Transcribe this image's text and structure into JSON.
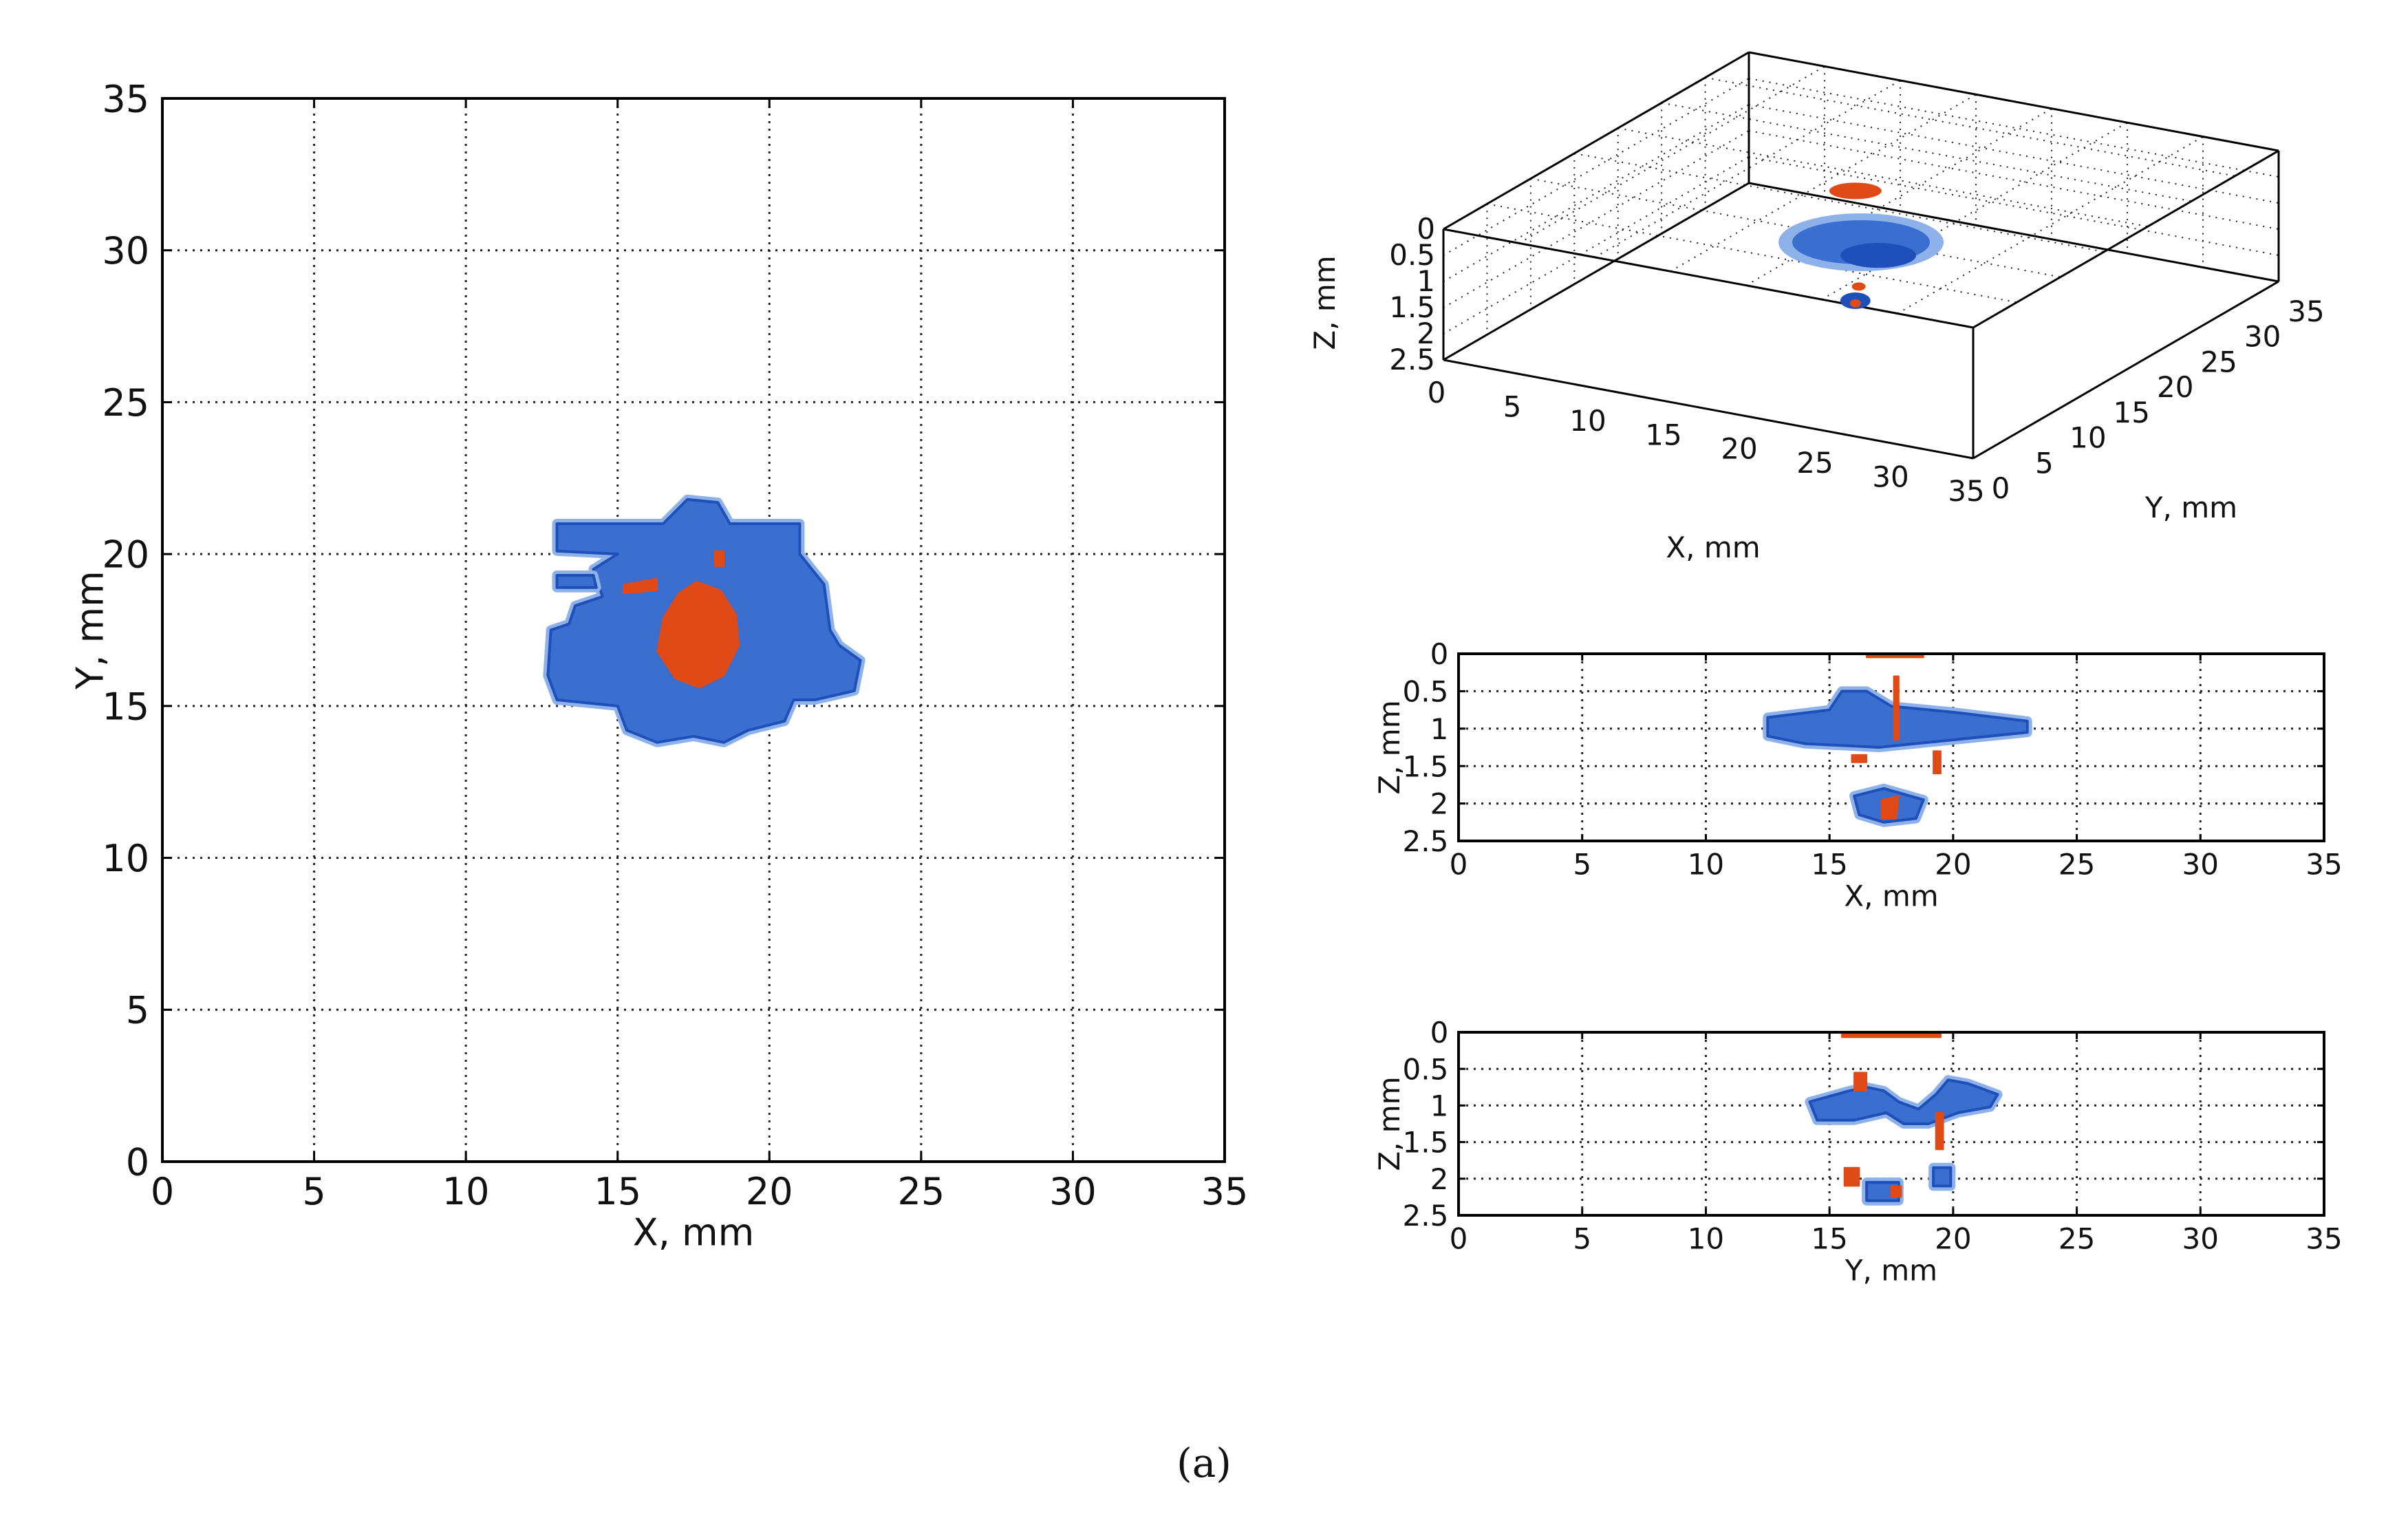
{
  "caption": "(a)",
  "colors": {
    "blue_dark": "#1f4fb8",
    "blue_mid": "#3a6fd0",
    "blue_light": "#8db2ea",
    "red": "#e04a16",
    "grid": "#222222",
    "axis": "#000000"
  },
  "chart_data": [
    {
      "id": "xy-view",
      "type": "heatmap",
      "title": "",
      "xlabel": "X, mm",
      "ylabel": "Y, mm",
      "xlim": [
        0,
        35
      ],
      "ylim": [
        0,
        35
      ],
      "xticks": [
        0,
        5,
        10,
        15,
        20,
        25,
        30,
        35
      ],
      "yticks": [
        0,
        5,
        10,
        15,
        20,
        25,
        30,
        35
      ],
      "grid": true,
      "regions": [
        {
          "name": "blue",
          "polygon": [
            [
              13,
              21
            ],
            [
              16.5,
              21
            ],
            [
              17.3,
              21.8
            ],
            [
              18.3,
              21.7
            ],
            [
              18.7,
              21
            ],
            [
              21,
              21
            ],
            [
              21,
              20
            ],
            [
              21.8,
              19
            ],
            [
              22,
              17.5
            ],
            [
              22.3,
              17
            ],
            [
              23,
              16.5
            ],
            [
              22.8,
              15.5
            ],
            [
              21.5,
              15.2
            ],
            [
              20.8,
              15.2
            ],
            [
              20.5,
              14.5
            ],
            [
              19.3,
              14.2
            ],
            [
              18.5,
              13.8
            ],
            [
              17.5,
              14
            ],
            [
              16.3,
              13.8
            ],
            [
              15.3,
              14.2
            ],
            [
              15,
              15
            ],
            [
              13,
              15.2
            ],
            [
              12.7,
              16
            ],
            [
              12.8,
              17.5
            ],
            [
              13.4,
              17.7
            ],
            [
              13.6,
              18.3
            ],
            [
              14.5,
              18.6
            ],
            [
              14.2,
              19.5
            ],
            [
              15,
              20
            ],
            [
              13,
              20.1
            ]
          ]
        },
        {
          "name": "blue",
          "polygon": [
            [
              13,
              19.3
            ],
            [
              14.2,
              19.3
            ],
            [
              14.3,
              18.9
            ],
            [
              13,
              18.9
            ]
          ]
        },
        {
          "name": "red",
          "polygon": [
            [
              17.6,
              19.1
            ],
            [
              18.4,
              18.8
            ],
            [
              18.9,
              18
            ],
            [
              19,
              17
            ],
            [
              18.5,
              16
            ],
            [
              17.7,
              15.6
            ],
            [
              16.9,
              15.9
            ],
            [
              16.3,
              16.8
            ],
            [
              16.5,
              17.9
            ],
            [
              17,
              18.7
            ]
          ]
        },
        {
          "name": "red",
          "polygon": [
            [
              18.2,
              20.1
            ],
            [
              18.5,
              20.1
            ],
            [
              18.5,
              19.6
            ],
            [
              18.2,
              19.6
            ]
          ]
        },
        {
          "name": "red",
          "polygon": [
            [
              15.2,
              19
            ],
            [
              16.3,
              19.2
            ],
            [
              16.3,
              18.8
            ],
            [
              15.2,
              18.7
            ]
          ]
        }
      ]
    },
    {
      "id": "xz-view",
      "type": "heatmap",
      "title": "",
      "xlabel": "X, mm",
      "ylabel": "Z, mm",
      "xlim": [
        0,
        35
      ],
      "ylim": [
        0,
        2.5
      ],
      "xticks": [
        0,
        5,
        10,
        15,
        20,
        25,
        30,
        35
      ],
      "yticks": [
        0,
        0.5,
        1,
        1.5,
        2,
        2.5
      ],
      "y_inverted": true,
      "grid": true,
      "regions": [
        {
          "name": "blue",
          "polygon": [
            [
              12.5,
              0.85
            ],
            [
              15,
              0.75
            ],
            [
              15.5,
              0.5
            ],
            [
              16.5,
              0.5
            ],
            [
              17.5,
              0.7
            ],
            [
              20,
              0.78
            ],
            [
              23,
              0.9
            ],
            [
              23,
              1.05
            ],
            [
              20,
              1.15
            ],
            [
              17,
              1.25
            ],
            [
              14,
              1.2
            ],
            [
              12.5,
              1.1
            ]
          ]
        },
        {
          "name": "blue",
          "polygon": [
            [
              16,
              1.9
            ],
            [
              17.2,
              1.8
            ],
            [
              18.8,
              1.95
            ],
            [
              18.5,
              2.2
            ],
            [
              17.2,
              2.25
            ],
            [
              16.2,
              2.15
            ]
          ]
        },
        {
          "name": "red",
          "polygon": [
            [
              16.5,
              0
            ],
            [
              18.8,
              0
            ],
            [
              18.8,
              0.05
            ],
            [
              16.5,
              0.05
            ]
          ]
        },
        {
          "name": "red",
          "polygon": [
            [
              17.6,
              0.3
            ],
            [
              17.8,
              0.3
            ],
            [
              17.8,
              1.15
            ],
            [
              17.6,
              1.15
            ]
          ]
        },
        {
          "name": "red",
          "polygon": [
            [
              17.1,
              1.95
            ],
            [
              17.8,
              1.9
            ],
            [
              17.7,
              2.2
            ],
            [
              17.1,
              2.2
            ]
          ]
        },
        {
          "name": "red",
          "polygon": [
            [
              15.9,
              1.35
            ],
            [
              16.5,
              1.35
            ],
            [
              16.5,
              1.45
            ],
            [
              15.9,
              1.45
            ]
          ]
        },
        {
          "name": "red",
          "polygon": [
            [
              19.2,
              1.3
            ],
            [
              19.5,
              1.3
            ],
            [
              19.5,
              1.6
            ],
            [
              19.2,
              1.6
            ]
          ]
        }
      ]
    },
    {
      "id": "yz-view",
      "type": "heatmap",
      "title": "",
      "xlabel": "Y, mm",
      "ylabel": "Z, mm",
      "xlim": [
        0,
        35
      ],
      "ylim": [
        0,
        2.5
      ],
      "xticks": [
        0,
        5,
        10,
        15,
        20,
        25,
        30,
        35
      ],
      "yticks": [
        0,
        0.5,
        1,
        1.5,
        2,
        2.5
      ],
      "y_inverted": true,
      "grid": true,
      "regions": [
        {
          "name": "blue",
          "polygon": [
            [
              14.2,
              0.95
            ],
            [
              15.8,
              0.8
            ],
            [
              16.5,
              0.75
            ],
            [
              17.2,
              0.8
            ],
            [
              17.8,
              0.95
            ],
            [
              18.6,
              1.05
            ],
            [
              19.3,
              0.85
            ],
            [
              19.8,
              0.65
            ],
            [
              20.6,
              0.7
            ],
            [
              21.8,
              0.85
            ],
            [
              21.5,
              1.02
            ],
            [
              20.2,
              1.1
            ],
            [
              19,
              1.25
            ],
            [
              18,
              1.25
            ],
            [
              17.3,
              1.1
            ],
            [
              16,
              1.2
            ],
            [
              14.5,
              1.2
            ]
          ]
        },
        {
          "name": "blue",
          "polygon": [
            [
              16.5,
              2.05
            ],
            [
              17.8,
              2.05
            ],
            [
              17.8,
              2.3
            ],
            [
              16.5,
              2.3
            ]
          ]
        },
        {
          "name": "blue",
          "polygon": [
            [
              19.2,
              1.85
            ],
            [
              19.9,
              1.85
            ],
            [
              19.9,
              2.1
            ],
            [
              19.2,
              2.1
            ]
          ]
        },
        {
          "name": "red",
          "polygon": [
            [
              15.5,
              0
            ],
            [
              19.5,
              0
            ],
            [
              19.5,
              0.07
            ],
            [
              15.5,
              0.07
            ]
          ]
        },
        {
          "name": "red",
          "polygon": [
            [
              16,
              0.55
            ],
            [
              16.5,
              0.55
            ],
            [
              16.5,
              0.8
            ],
            [
              16,
              0.8
            ]
          ]
        },
        {
          "name": "red",
          "polygon": [
            [
              15.6,
              1.85
            ],
            [
              16.2,
              1.85
            ],
            [
              16.2,
              2.1
            ],
            [
              15.6,
              2.1
            ]
          ]
        },
        {
          "name": "red",
          "polygon": [
            [
              17.5,
              2.1
            ],
            [
              17.9,
              2.1
            ],
            [
              17.9,
              2.25
            ],
            [
              17.5,
              2.25
            ]
          ]
        },
        {
          "name": "red",
          "polygon": [
            [
              19.3,
              1.1
            ],
            [
              19.6,
              1.1
            ],
            [
              19.6,
              1.6
            ],
            [
              19.3,
              1.6
            ]
          ]
        }
      ]
    },
    {
      "id": "3d-view",
      "type": "scatter",
      "title": "",
      "xlabel": "X, mm",
      "ylabel": "Y, mm",
      "zlabel": "Z, mm",
      "xlim": [
        0,
        35
      ],
      "ylim": [
        0,
        35
      ],
      "zlim": [
        0,
        2.5
      ],
      "xticks": [
        0,
        5,
        10,
        15,
        20,
        25,
        30,
        35
      ],
      "yticks": [
        0,
        5,
        10,
        15,
        20,
        25,
        30,
        35
      ],
      "zticks": [
        0,
        0.5,
        1,
        1.5,
        2,
        2.5
      ],
      "grid": true
    }
  ]
}
